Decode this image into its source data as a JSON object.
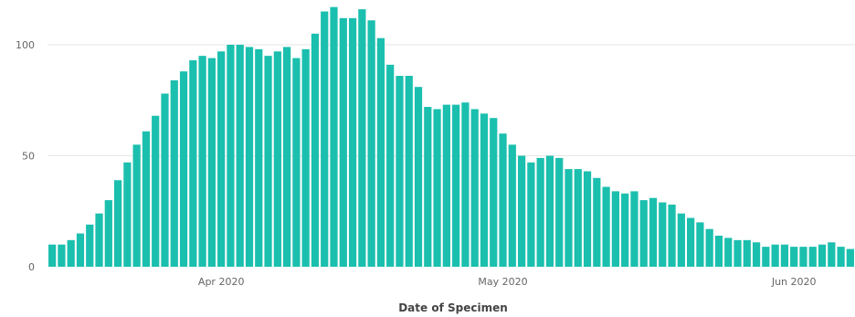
{
  "chart_data": {
    "type": "bar",
    "xlabel": "Date of Specimen",
    "ylabel": "",
    "ylim": [
      0,
      120
    ],
    "yticks": [
      0,
      50,
      100
    ],
    "grid": true,
    "bar_color": "#1BBFAE",
    "x_start": "2020-03-14",
    "xtick_labels": [
      {
        "label": "Apr 2020",
        "date": "2020-04-01"
      },
      {
        "label": "May 2020",
        "date": "2020-05-01"
      },
      {
        "label": "Jun 2020",
        "date": "2020-06-01"
      }
    ],
    "values": [
      10,
      10,
      12,
      15,
      19,
      24,
      30,
      39,
      47,
      55,
      61,
      68,
      78,
      84,
      88,
      93,
      95,
      94,
      97,
      100,
      100,
      99,
      98,
      95,
      97,
      99,
      94,
      98,
      105,
      115,
      117,
      112,
      112,
      116,
      111,
      103,
      91,
      86,
      86,
      81,
      72,
      71,
      73,
      73,
      74,
      71,
      69,
      67,
      60,
      55,
      50,
      47,
      49,
      50,
      49,
      44,
      44,
      43,
      40,
      36,
      34,
      33,
      34,
      30,
      31,
      29,
      28,
      24,
      22,
      20,
      17,
      14,
      13,
      12,
      12,
      11,
      9,
      10,
      10,
      9,
      9,
      9,
      10,
      11,
      9,
      8
    ]
  }
}
